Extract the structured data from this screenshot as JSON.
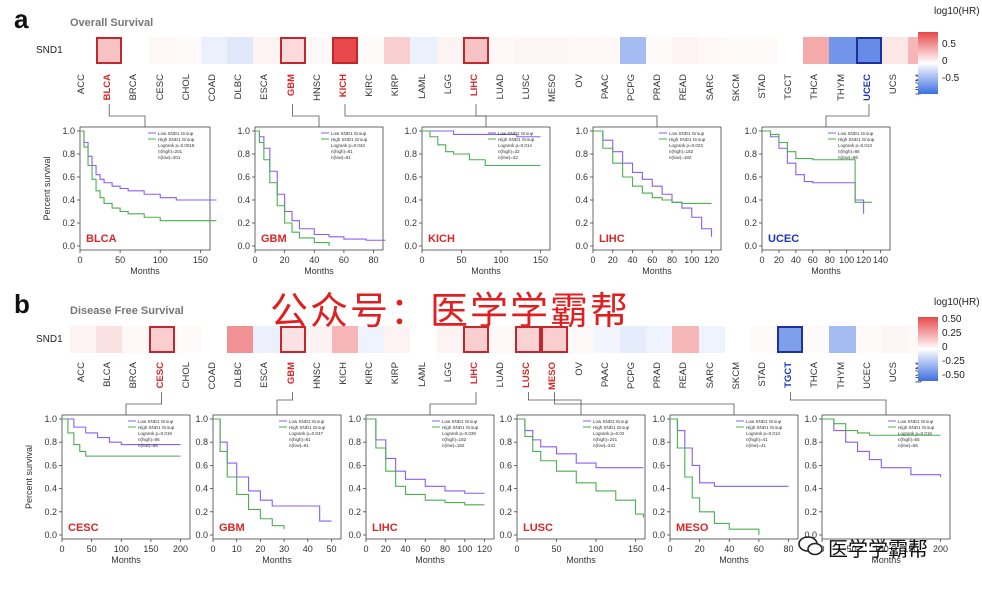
{
  "panel_a": {
    "letter": "a",
    "title": "Overall Survival",
    "gene": "SND1",
    "cancers": [
      "ACC",
      "BLCA",
      "BRCA",
      "CESC",
      "CHOL",
      "COAD",
      "DLBC",
      "ESCA",
      "GBM",
      "HNSC",
      "KICH",
      "KIRC",
      "KIRP",
      "LAML",
      "LGG",
      "LIHC",
      "LUAD",
      "LUSC",
      "MESO",
      "OV",
      "PAAC",
      "PCPG",
      "PRAD",
      "READ",
      "SARC",
      "SKCM",
      "STAD",
      "TGCT",
      "THCA",
      "THYM",
      "UCEC",
      "UCS",
      "UVM"
    ],
    "values": [
      0.0,
      0.25,
      0.0,
      0.03,
      0.02,
      -0.08,
      -0.12,
      0.05,
      0.15,
      0.03,
      0.75,
      0.02,
      0.2,
      -0.08,
      0.05,
      0.25,
      0.03,
      0.04,
      0.04,
      0.03,
      0.03,
      -0.35,
      0.02,
      0.05,
      0.03,
      0.02,
      0.02,
      0.0,
      0.35,
      -0.55,
      -0.6,
      0.1,
      0.3
    ],
    "highlight_red": [
      "BLCA",
      "GBM",
      "KICH",
      "LIHC"
    ],
    "highlight_blue": [
      "UCEC"
    ],
    "legend": {
      "title": "log10(HR)",
      "ticks": [
        "0.5",
        "0",
        "-0.5"
      ]
    }
  },
  "panel_b": {
    "letter": "b",
    "title": "Disease Free Survival",
    "gene": "SND1",
    "cancers": [
      "ACC",
      "BLCA",
      "BRCA",
      "CESC",
      "CHOL",
      "COAD",
      "DLBC",
      "ESCA",
      "GBM",
      "HNSC",
      "KICH",
      "KIRC",
      "KIRP",
      "LAML",
      "LGG",
      "LIHC",
      "LUAD",
      "LUSC",
      "MESO",
      "OV",
      "PAAC",
      "PCPG",
      "PRAD",
      "READ",
      "SARC",
      "SKCM",
      "STAD",
      "TGCT",
      "THCA",
      "THYM",
      "UCEC",
      "UCS",
      "UVM"
    ],
    "values": [
      0.05,
      0.12,
      0.03,
      0.2,
      0.02,
      0.0,
      0.45,
      -0.08,
      0.12,
      0.05,
      0.3,
      -0.06,
      0.05,
      0.0,
      0.05,
      0.2,
      0.03,
      0.18,
      0.2,
      0.03,
      -0.05,
      -0.1,
      -0.06,
      0.3,
      -0.06,
      0.0,
      0.02,
      -0.5,
      0.02,
      -0.35,
      0.02,
      0.04,
      0.03
    ],
    "highlight_red": [
      "CESC",
      "GBM",
      "LIHC",
      "LUSC",
      "MESO"
    ],
    "highlight_blue": [
      "TGCT"
    ],
    "legend": {
      "title": "log10(HR)",
      "ticks": [
        "0.50",
        "0.25",
        "0",
        "-0.25",
        "-0.50"
      ]
    }
  },
  "colors": {
    "low_group": "#8b5cf6",
    "high_group": "#4caf50",
    "highlight_red": "#d62828",
    "highlight_blue": "#1d36b8",
    "pos": "#e8484b",
    "neg": "#3d6fe0"
  },
  "km_legend": {
    "low": "Low SND1 Group",
    "high": "High SND1 Group"
  },
  "chart_data": [
    {
      "type": "line",
      "label": "BLCA",
      "xlabel": "Months",
      "ylabel": "Percent survival",
      "xticks": [
        0,
        50,
        100,
        150
      ],
      "yticks": [
        "0.0",
        "0.2",
        "0.4",
        "0.6",
        "0.8",
        "1.0"
      ],
      "stats": [
        "Logrank p=0.0018",
        "n(high)=201",
        "n(low)=201"
      ],
      "series": [
        {
          "name": "Low SND1 Group",
          "x": [
            0,
            5,
            10,
            15,
            20,
            25,
            30,
            40,
            50,
            60,
            80,
            100,
            120,
            140,
            170
          ],
          "y": [
            1,
            0.9,
            0.78,
            0.7,
            0.62,
            0.58,
            0.55,
            0.52,
            0.5,
            0.48,
            0.45,
            0.42,
            0.4,
            0.4,
            0.4
          ]
        },
        {
          "name": "High SND1 Group",
          "x": [
            0,
            5,
            10,
            15,
            20,
            25,
            30,
            40,
            50,
            60,
            80,
            100,
            120,
            140,
            170
          ],
          "y": [
            1,
            0.86,
            0.7,
            0.58,
            0.48,
            0.42,
            0.37,
            0.33,
            0.3,
            0.28,
            0.25,
            0.22,
            0.22,
            0.22,
            0.22
          ]
        }
      ]
    },
    {
      "type": "line",
      "label": "GBM",
      "xlabel": "Months",
      "ylabel": "",
      "xticks": [
        0,
        20,
        40,
        60,
        80
      ],
      "yticks": [
        "0.0",
        "0.2",
        "0.4",
        "0.6",
        "0.8",
        "1.0"
      ],
      "stats": [
        "Logrank p=0.043",
        "n(high)=81",
        "n(low)=81"
      ],
      "series": [
        {
          "name": "Low SND1 Group",
          "x": [
            0,
            3,
            6,
            10,
            15,
            20,
            25,
            30,
            40,
            50,
            60,
            75,
            88
          ],
          "y": [
            1,
            0.95,
            0.85,
            0.65,
            0.45,
            0.3,
            0.22,
            0.15,
            0.1,
            0.08,
            0.06,
            0.05,
            0.05
          ]
        },
        {
          "name": "High SND1 Group",
          "x": [
            0,
            3,
            6,
            10,
            15,
            20,
            25,
            30,
            40,
            50
          ],
          "y": [
            1,
            0.9,
            0.75,
            0.55,
            0.35,
            0.2,
            0.12,
            0.07,
            0.03,
            0.0
          ]
        }
      ]
    },
    {
      "type": "line",
      "label": "KICH",
      "xlabel": "Months",
      "ylabel": "",
      "xticks": [
        0,
        50,
        100,
        150
      ],
      "yticks": [
        "0.0",
        "0.2",
        "0.4",
        "0.6",
        "0.8",
        "1.0"
      ],
      "stats": [
        "Logrank p=0.014",
        "n(high)=32",
        "n(low)=32"
      ],
      "series": [
        {
          "name": "Low SND1 Group",
          "x": [
            0,
            20,
            40,
            60,
            80,
            100,
            120,
            150
          ],
          "y": [
            1,
            1,
            0.97,
            0.97,
            0.97,
            0.97,
            0.95,
            0.95
          ]
        },
        {
          "name": "High SND1 Group",
          "x": [
            0,
            10,
            20,
            30,
            40,
            60,
            80,
            100,
            150
          ],
          "y": [
            1,
            0.95,
            0.88,
            0.82,
            0.8,
            0.75,
            0.7,
            0.7,
            0.7
          ]
        }
      ]
    },
    {
      "type": "line",
      "label": "LIHC",
      "xlabel": "Months",
      "ylabel": "",
      "xticks": [
        0,
        20,
        40,
        60,
        80,
        100,
        120
      ],
      "yticks": [
        "0.0",
        "0.2",
        "0.4",
        "0.6",
        "0.8",
        "1.0"
      ],
      "stats": [
        "Logrank p=0.023",
        "n(high)=182",
        "n(low)=182"
      ],
      "series": [
        {
          "name": "Low SND1 Group",
          "x": [
            0,
            10,
            20,
            30,
            40,
            50,
            60,
            70,
            80,
            90,
            100,
            110,
            120
          ],
          "y": [
            1,
            0.92,
            0.82,
            0.72,
            0.64,
            0.58,
            0.52,
            0.45,
            0.38,
            0.33,
            0.25,
            0.15,
            0.08
          ]
        },
        {
          "name": "High SND1 Group",
          "x": [
            0,
            10,
            20,
            30,
            40,
            50,
            60,
            70,
            80,
            90,
            100,
            110,
            120
          ],
          "y": [
            1,
            0.85,
            0.72,
            0.6,
            0.52,
            0.46,
            0.42,
            0.4,
            0.38,
            0.37,
            0.37,
            0.37,
            0.37
          ]
        }
      ]
    },
    {
      "type": "line",
      "label": "UCEC",
      "xlabel": "Months",
      "ylabel": "",
      "xticks": [
        0,
        20,
        40,
        60,
        80,
        100,
        120,
        140
      ],
      "yticks": [
        "0.0",
        "0.2",
        "0.4",
        "0.6",
        "0.8",
        "1.0"
      ],
      "stats": [
        "Logrank p=0.013",
        "n(high)=86",
        "n(low)=86"
      ],
      "series": [
        {
          "name": "Low SND1 Group",
          "x": [
            0,
            10,
            20,
            30,
            40,
            50,
            60,
            80,
            100,
            110,
            120
          ],
          "y": [
            1,
            0.95,
            0.85,
            0.72,
            0.62,
            0.56,
            0.55,
            0.55,
            0.55,
            0.4,
            0.28
          ]
        },
        {
          "name": "High SND1 Group",
          "x": [
            0,
            10,
            20,
            30,
            40,
            60,
            80,
            100,
            110,
            130
          ],
          "y": [
            1,
            0.97,
            0.9,
            0.82,
            0.76,
            0.75,
            0.75,
            0.75,
            0.38,
            0.38
          ]
        }
      ]
    },
    {
      "type": "line",
      "label": "CESC",
      "xlabel": "Months",
      "ylabel": "Percent survival",
      "xticks": [
        0,
        50,
        100,
        150,
        200
      ],
      "yticks": [
        "0.0",
        "0.2",
        "0.4",
        "0.6",
        "0.8",
        "1.0"
      ],
      "stats": [
        "Logrank p=0.019",
        "n(high)=86",
        "n(low)=86"
      ],
      "series": [
        {
          "name": "Low SND1 Group",
          "x": [
            0,
            20,
            40,
            60,
            80,
            100,
            150,
            200
          ],
          "y": [
            1,
            0.93,
            0.88,
            0.84,
            0.8,
            0.78,
            0.78,
            0.78
          ]
        },
        {
          "name": "High SND1 Group",
          "x": [
            0,
            10,
            20,
            30,
            40,
            60,
            100,
            150,
            200
          ],
          "y": [
            1,
            0.88,
            0.78,
            0.72,
            0.68,
            0.68,
            0.68,
            0.68,
            0.68
          ]
        }
      ]
    },
    {
      "type": "line",
      "label": "GBM",
      "xlabel": "Months",
      "ylabel": "",
      "xticks": [
        0,
        10,
        20,
        30,
        40,
        50
      ],
      "yticks": [
        "0.0",
        "0.2",
        "0.4",
        "0.6",
        "0.8",
        "1.0"
      ],
      "stats": [
        "Logrank p=0.047",
        "n(high)=81",
        "n(low)=81"
      ],
      "series": [
        {
          "name": "Low SND1 Group",
          "x": [
            0,
            3,
            6,
            10,
            15,
            20,
            25,
            30,
            40,
            45,
            50
          ],
          "y": [
            1,
            0.8,
            0.62,
            0.5,
            0.38,
            0.3,
            0.25,
            0.25,
            0.25,
            0.12,
            0.12
          ]
        },
        {
          "name": "High SND1 Group",
          "x": [
            0,
            3,
            6,
            10,
            15,
            20,
            25,
            30
          ],
          "y": [
            1,
            0.72,
            0.5,
            0.35,
            0.22,
            0.14,
            0.08,
            0.05
          ]
        }
      ]
    },
    {
      "type": "line",
      "label": "LIHC",
      "xlabel": "Months",
      "ylabel": "",
      "xticks": [
        0,
        20,
        40,
        60,
        80,
        100,
        120
      ],
      "yticks": [
        "0.0",
        "0.2",
        "0.4",
        "0.6",
        "0.8",
        "1.0"
      ],
      "stats": [
        "Logrank p=0.039",
        "n(high)=182",
        "n(low)=182"
      ],
      "series": [
        {
          "name": "Low SND1 Group",
          "x": [
            0,
            10,
            20,
            30,
            40,
            60,
            80,
            100,
            120
          ],
          "y": [
            1,
            0.82,
            0.66,
            0.55,
            0.48,
            0.42,
            0.38,
            0.36,
            0.36
          ]
        },
        {
          "name": "High SND1 Group",
          "x": [
            0,
            10,
            20,
            30,
            40,
            60,
            80,
            100,
            120
          ],
          "y": [
            1,
            0.75,
            0.55,
            0.42,
            0.35,
            0.3,
            0.28,
            0.26,
            0.26
          ]
        }
      ]
    },
    {
      "type": "line",
      "label": "LUSC",
      "xlabel": "Months",
      "ylabel": "",
      "xticks": [
        0,
        50,
        100,
        150
      ],
      "yticks": [
        "0.0",
        "0.2",
        "0.4",
        "0.6",
        "0.8",
        "1.0"
      ],
      "stats": [
        "Logrank p=0.02",
        "n(high)=241",
        "n(low)=241"
      ],
      "series": [
        {
          "name": "Low SND1 Group",
          "x": [
            0,
            10,
            20,
            30,
            50,
            75,
            100,
            125,
            150,
            160
          ],
          "y": [
            1,
            0.9,
            0.82,
            0.76,
            0.7,
            0.62,
            0.58,
            0.58,
            0.58,
            0.58
          ]
        },
        {
          "name": "High SND1 Group",
          "x": [
            0,
            10,
            20,
            30,
            50,
            75,
            100,
            125,
            150,
            160
          ],
          "y": [
            1,
            0.85,
            0.72,
            0.64,
            0.55,
            0.45,
            0.38,
            0.3,
            0.18,
            0.15
          ]
        }
      ]
    },
    {
      "type": "line",
      "label": "MESO",
      "xlabel": "Months",
      "ylabel": "",
      "xticks": [
        0,
        20,
        40,
        60,
        80
      ],
      "yticks": [
        "0.0",
        "0.2",
        "0.4",
        "0.6",
        "0.8",
        "1.0"
      ],
      "stats": [
        "Logrank p=0.013",
        "n(high)=41",
        "n(low)=41"
      ],
      "series": [
        {
          "name": "Low SND1 Group",
          "x": [
            0,
            5,
            10,
            15,
            20,
            30,
            40,
            60,
            80
          ],
          "y": [
            1,
            0.9,
            0.75,
            0.6,
            0.45,
            0.42,
            0.42,
            0.42,
            0.42
          ]
        },
        {
          "name": "High SND1 Group",
          "x": [
            0,
            5,
            10,
            15,
            20,
            30,
            40,
            60
          ],
          "y": [
            1,
            0.75,
            0.5,
            0.32,
            0.2,
            0.1,
            0.05,
            0.0
          ]
        }
      ]
    },
    {
      "type": "line",
      "label": "",
      "xlabel": "Months",
      "ylabel": "",
      "xticks": [
        0,
        50,
        100,
        150,
        200
      ],
      "yticks": [
        "0.0",
        "0.2",
        "0.4",
        "0.6",
        "0.8",
        "1.0"
      ],
      "stats": [
        "Logrank p=0.016",
        "n(high)=65",
        "n(low)=65"
      ],
      "series": [
        {
          "name": "Low SND1 Group",
          "x": [
            0,
            20,
            40,
            60,
            80,
            100,
            150,
            200
          ],
          "y": [
            1,
            0.9,
            0.8,
            0.72,
            0.65,
            0.58,
            0.52,
            0.5
          ]
        },
        {
          "name": "High SND1 Group",
          "x": [
            0,
            20,
            40,
            60,
            80,
            100,
            150,
            200
          ],
          "y": [
            1,
            0.96,
            0.9,
            0.88,
            0.86,
            0.86,
            0.86,
            0.86
          ]
        }
      ]
    }
  ],
  "watermark": {
    "main": "公众号：医学学霸帮",
    "corner": "医学学霸帮"
  }
}
